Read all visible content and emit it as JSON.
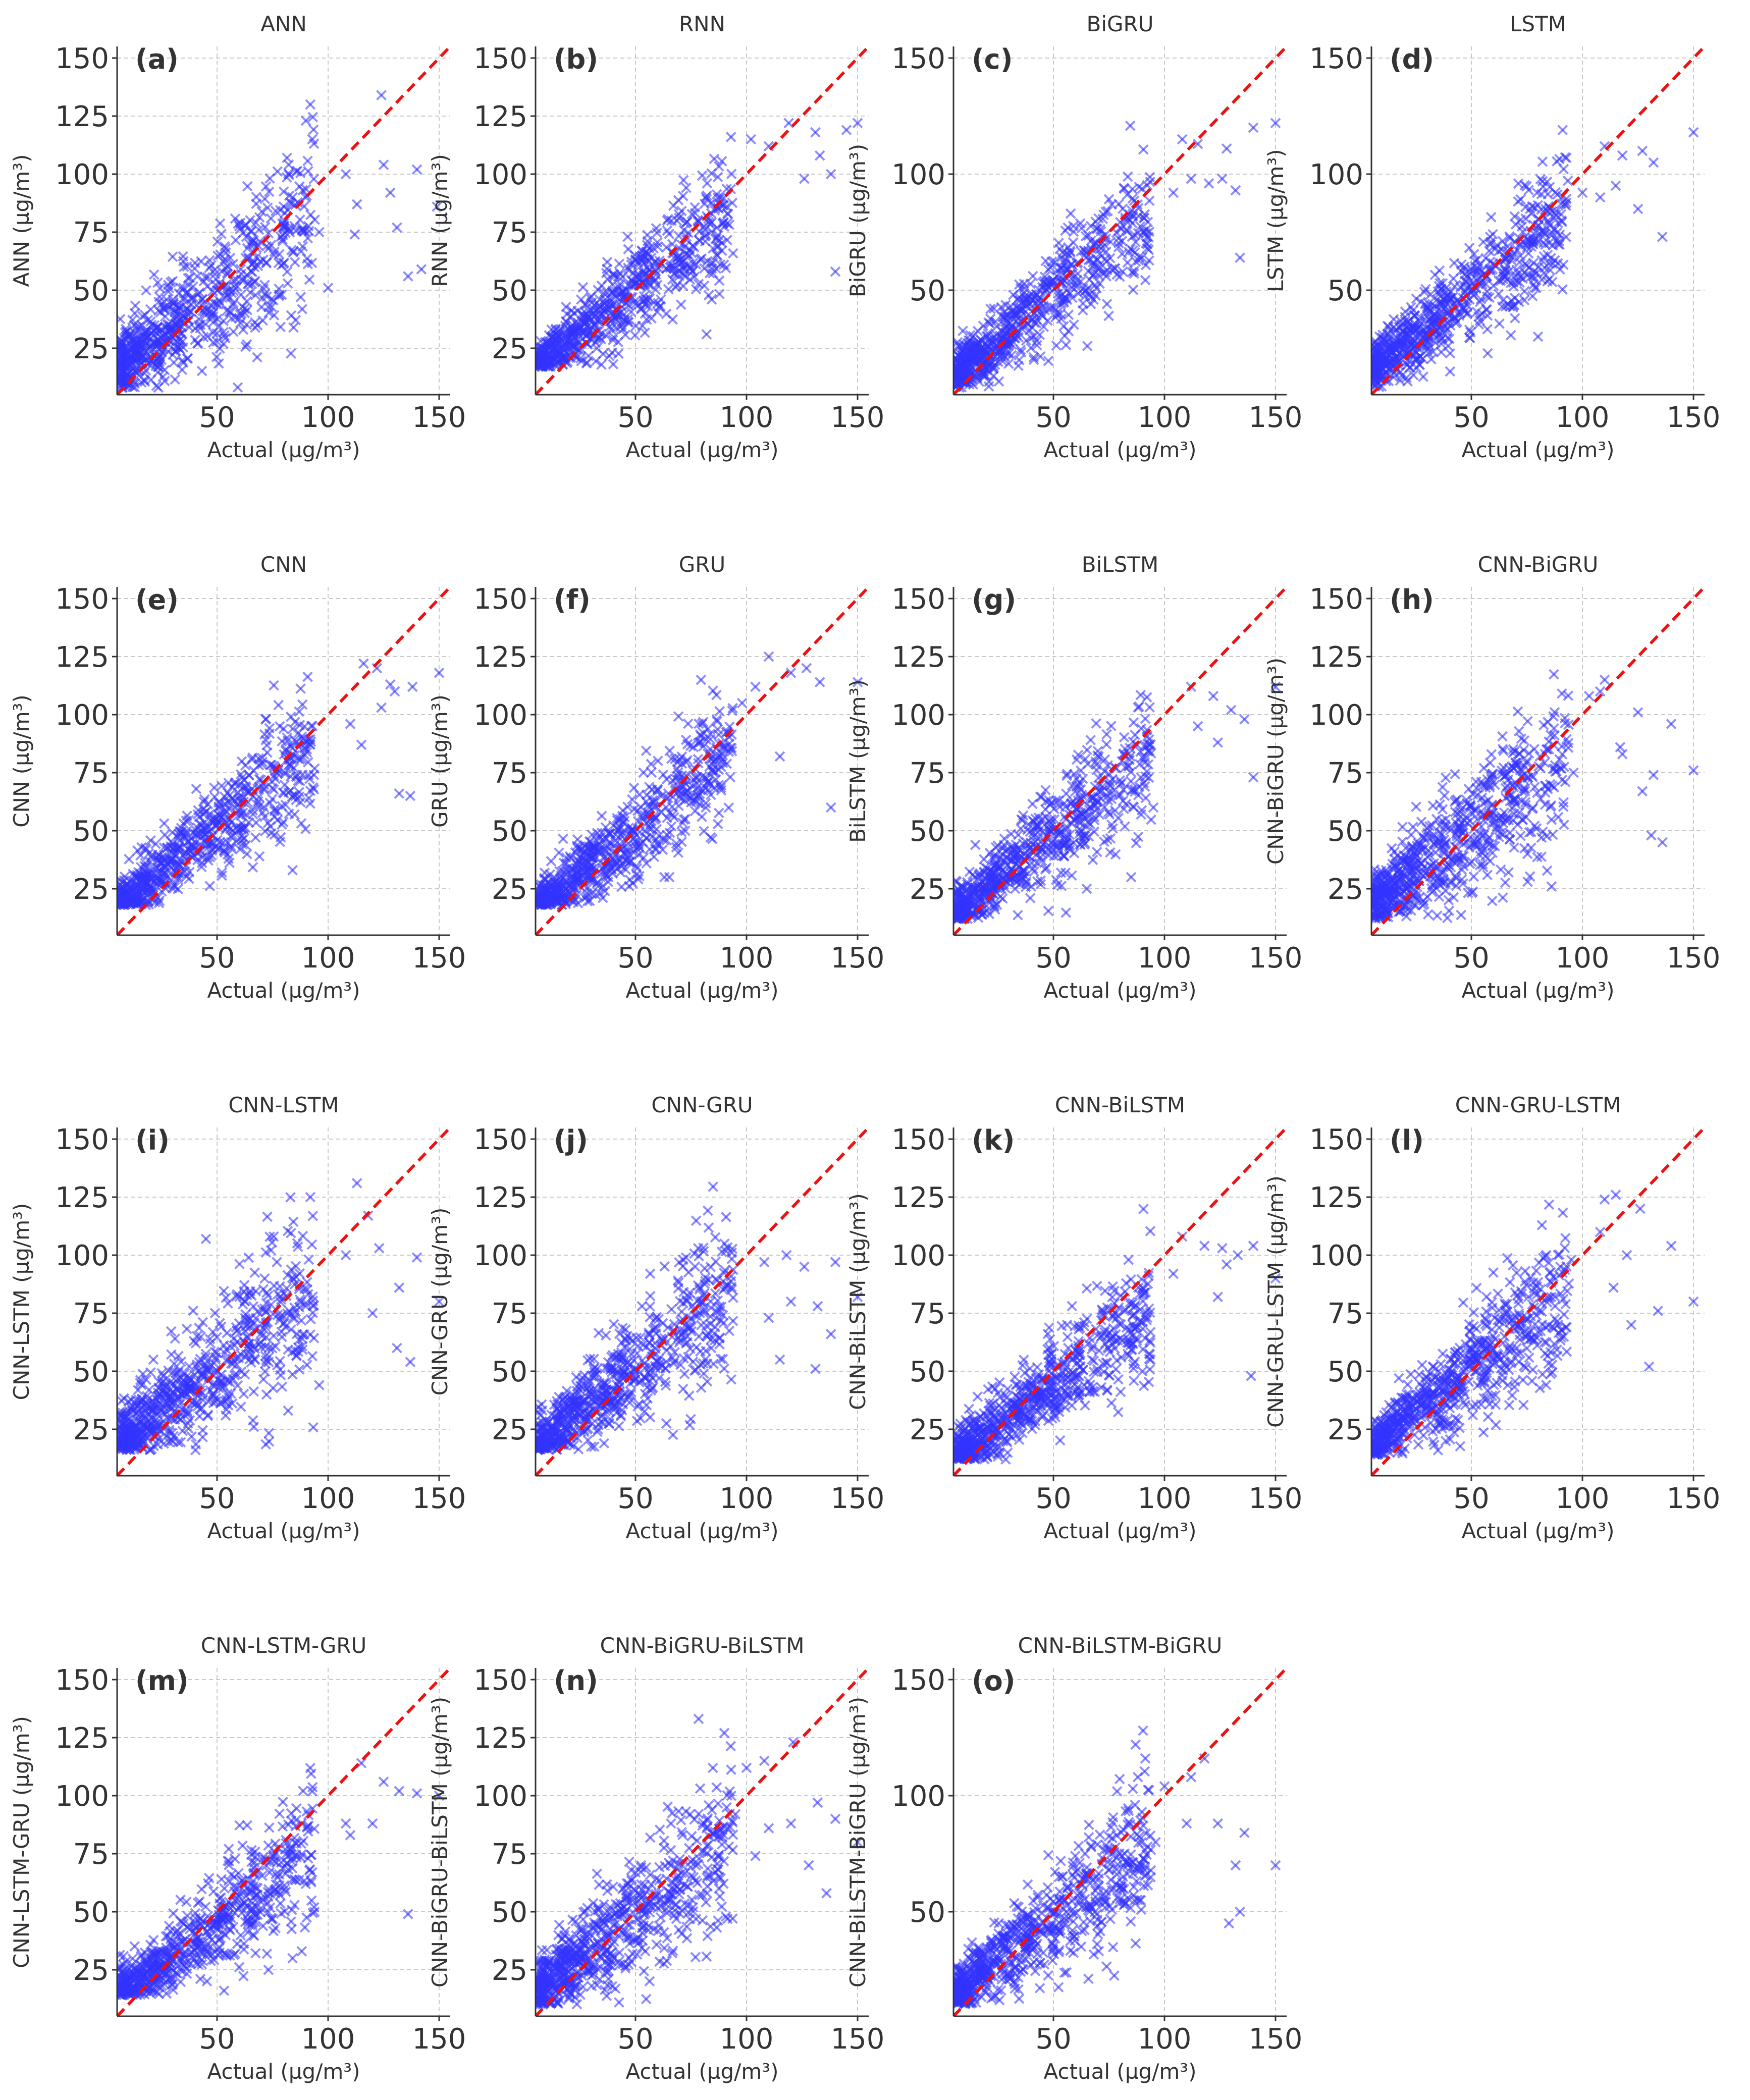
{
  "figure": {
    "marker_color": "#3333ff",
    "identity_line_color": "#ee1111",
    "xlabel": "Actual (µg/m³)",
    "xlim": [
      5,
      155
    ],
    "xticks": [
      50,
      100,
      150
    ]
  },
  "chart_data": [
    {
      "type": "scatter",
      "letter": "(a)",
      "title": "ANN",
      "ylabel": "ANN (µg/m³)",
      "ylim": [
        5,
        155
      ],
      "yticks": [
        25,
        50,
        75,
        100,
        125,
        150
      ],
      "spread": 11,
      "slope": 0.72,
      "intercept": 13,
      "ymin": 8,
      "outliers": [
        [
          92,
          130
        ],
        [
          124,
          134
        ],
        [
          125,
          104
        ],
        [
          90,
          123
        ],
        [
          140,
          102
        ],
        [
          149,
          86
        ],
        [
          113,
          87
        ],
        [
          112,
          74
        ],
        [
          131,
          77
        ],
        [
          128,
          92
        ],
        [
          142,
          59
        ],
        [
          136,
          56
        ],
        [
          100,
          51
        ],
        [
          96,
          75
        ],
        [
          108,
          100
        ]
      ]
    },
    {
      "type": "scatter",
      "letter": "(b)",
      "title": "RNN",
      "ylabel": "RNN (µg/m³)",
      "ylim": [
        5,
        155
      ],
      "yticks": [
        25,
        50,
        75,
        100,
        125,
        150
      ],
      "spread": 8,
      "slope": 0.78,
      "intercept": 12,
      "ymin": 17,
      "outliers": [
        [
          93,
          116
        ],
        [
          119,
          122
        ],
        [
          131,
          118
        ],
        [
          150,
          122
        ],
        [
          145,
          119
        ],
        [
          138,
          100
        ],
        [
          133,
          108
        ],
        [
          126,
          98
        ],
        [
          140,
          58
        ],
        [
          82,
          31
        ],
        [
          102,
          115
        ],
        [
          110,
          112
        ]
      ]
    },
    {
      "type": "scatter",
      "letter": "(c)",
      "title": "BiGRU",
      "ylabel": "BiGRU (µg/m³)",
      "ylim": [
        5,
        155
      ],
      "yticks": [
        50,
        100,
        150
      ],
      "spread": 8,
      "slope": 0.78,
      "intercept": 9,
      "ymin": 8,
      "outliers": [
        [
          108,
          115
        ],
        [
          115,
          113
        ],
        [
          128,
          111
        ],
        [
          150,
          122
        ],
        [
          140,
          120
        ],
        [
          126,
          98
        ],
        [
          134,
          64
        ],
        [
          132,
          93
        ],
        [
          104,
          92
        ],
        [
          112,
          98
        ],
        [
          120,
          96
        ]
      ]
    },
    {
      "type": "scatter",
      "letter": "(d)",
      "title": "LSTM",
      "ylabel": "LSTM (µg/m³)",
      "ylim": [
        5,
        155
      ],
      "yticks": [
        50,
        100,
        150
      ],
      "spread": 8,
      "slope": 0.74,
      "intercept": 12,
      "ymin": 8,
      "outliers": [
        [
          110,
          112
        ],
        [
          118,
          108
        ],
        [
          127,
          110
        ],
        [
          132,
          105
        ],
        [
          150,
          118
        ],
        [
          136,
          73
        ],
        [
          125,
          85
        ],
        [
          115,
          95
        ],
        [
          100,
          92
        ],
        [
          108,
          90
        ],
        [
          80,
          30
        ]
      ]
    },
    {
      "type": "scatter",
      "letter": "(e)",
      "title": "CNN",
      "ylabel": "CNN (µg/m³)",
      "ylim": [
        5,
        155
      ],
      "yticks": [
        25,
        50,
        75,
        100,
        125,
        150
      ],
      "spread": 8,
      "slope": 0.76,
      "intercept": 14,
      "ymin": 18,
      "outliers": [
        [
          116,
          122
        ],
        [
          122,
          120
        ],
        [
          128,
          113
        ],
        [
          130,
          110
        ],
        [
          138,
          112
        ],
        [
          150,
          118
        ],
        [
          132,
          66
        ],
        [
          137,
          65
        ],
        [
          124,
          103
        ],
        [
          110,
          96
        ],
        [
          115,
          87
        ],
        [
          84,
          33
        ]
      ]
    },
    {
      "type": "scatter",
      "letter": "(f)",
      "title": "GRU",
      "ylabel": "GRU (µg/m³)",
      "ylim": [
        5,
        155
      ],
      "yticks": [
        25,
        50,
        75,
        100,
        125,
        150
      ],
      "spread": 8,
      "slope": 0.8,
      "intercept": 11,
      "ymin": 18,
      "outliers": [
        [
          110,
          125
        ],
        [
          120,
          118
        ],
        [
          127,
          120
        ],
        [
          133,
          114
        ],
        [
          150,
          114
        ],
        [
          138,
          60
        ],
        [
          115,
          82
        ],
        [
          104,
          112
        ],
        [
          63,
          30
        ],
        [
          98,
          105
        ]
      ]
    },
    {
      "type": "scatter",
      "letter": "(g)",
      "title": "BiLSTM",
      "ylabel": "BiLSTM (µg/m³)",
      "ylim": [
        5,
        155
      ],
      "yticks": [
        25,
        50,
        75,
        100,
        125,
        150
      ],
      "spread": 8,
      "slope": 0.78,
      "intercept": 10,
      "ymin": 12,
      "outliers": [
        [
          112,
          112
        ],
        [
          122,
          108
        ],
        [
          130,
          102
        ],
        [
          136,
          98
        ],
        [
          150,
          112
        ],
        [
          140,
          73
        ],
        [
          124,
          88
        ],
        [
          95,
          60
        ],
        [
          85,
          30
        ],
        [
          65,
          25
        ],
        [
          115,
          95
        ]
      ]
    },
    {
      "type": "scatter",
      "letter": "(h)",
      "title": "CNN-BiGRU",
      "ylabel": "CNN-BiGRU (µg/m³)",
      "ylim": [
        5,
        155
      ],
      "yticks": [
        25,
        50,
        75,
        100,
        125,
        150
      ],
      "spread": 10,
      "slope": 0.72,
      "intercept": 15,
      "ymin": 12,
      "outliers": [
        [
          110,
          115
        ],
        [
          125,
          101
        ],
        [
          108,
          110
        ],
        [
          140,
          96
        ],
        [
          150,
          76
        ],
        [
          132,
          74
        ],
        [
          131,
          48
        ],
        [
          136,
          45
        ],
        [
          127,
          67
        ],
        [
          117,
          86
        ],
        [
          103,
          108
        ],
        [
          118,
          83
        ],
        [
          96,
          75
        ]
      ]
    },
    {
      "type": "scatter",
      "letter": "(i)",
      "title": "CNN-LSTM",
      "ylabel": "CNN-LSTM (µg/m³)",
      "ylim": [
        5,
        155
      ],
      "yticks": [
        25,
        50,
        75,
        100,
        125,
        150
      ],
      "spread": 10,
      "slope": 0.72,
      "intercept": 16,
      "ymin": 16,
      "outliers": [
        [
          92,
          125
        ],
        [
          113,
          131
        ],
        [
          118,
          117
        ],
        [
          108,
          100
        ],
        [
          123,
          103
        ],
        [
          140,
          99
        ],
        [
          132,
          86
        ],
        [
          150,
          80
        ],
        [
          137,
          54
        ],
        [
          131,
          60
        ],
        [
          120,
          75
        ],
        [
          45,
          107
        ],
        [
          82,
          33
        ],
        [
          96,
          44
        ]
      ]
    },
    {
      "type": "scatter",
      "letter": "(j)",
      "title": "CNN-GRU",
      "ylabel": "CNN-GRU (µg/m³)",
      "ylim": [
        5,
        155
      ],
      "yticks": [
        25,
        50,
        75,
        100,
        125,
        150
      ],
      "spread": 9,
      "slope": 0.74,
      "intercept": 14,
      "ymin": 16,
      "outliers": [
        [
          108,
          97
        ],
        [
          118,
          100
        ],
        [
          126,
          95
        ],
        [
          140,
          97
        ],
        [
          150,
          82
        ],
        [
          132,
          78
        ],
        [
          120,
          80
        ],
        [
          138,
          66
        ],
        [
          131,
          51
        ],
        [
          115,
          55
        ],
        [
          110,
          73
        ]
      ]
    },
    {
      "type": "scatter",
      "letter": "(k)",
      "title": "CNN-BiLSTM",
      "ylabel": "CNN-BiLSTM (µg/m³)",
      "ylim": [
        5,
        155
      ],
      "yticks": [
        25,
        50,
        75,
        100,
        125,
        150
      ],
      "spread": 8,
      "slope": 0.72,
      "intercept": 9,
      "ymin": 12,
      "outliers": [
        [
          108,
          108
        ],
        [
          118,
          104
        ],
        [
          126,
          103
        ],
        [
          140,
          104
        ],
        [
          150,
          90
        ],
        [
          133,
          100
        ],
        [
          124,
          82
        ],
        [
          139,
          48
        ],
        [
          128,
          96
        ],
        [
          104,
          92
        ],
        [
          92,
          72
        ]
      ]
    },
    {
      "type": "scatter",
      "letter": "(l)",
      "title": "CNN-GRU-LSTM",
      "ylabel": "CNN-GRU-LSTM (µg/m³)",
      "ylim": [
        5,
        155
      ],
      "yticks": [
        25,
        50,
        75,
        100,
        125,
        150
      ],
      "spread": 9,
      "slope": 0.75,
      "intercept": 14,
      "ymin": 14,
      "outliers": [
        [
          110,
          124
        ],
        [
          115,
          126
        ],
        [
          108,
          110
        ],
        [
          120,
          100
        ],
        [
          126,
          120
        ],
        [
          140,
          104
        ],
        [
          150,
          80
        ],
        [
          134,
          76
        ],
        [
          130,
          52
        ],
        [
          122,
          70
        ],
        [
          114,
          86
        ],
        [
          95,
          98
        ]
      ]
    },
    {
      "type": "scatter",
      "letter": "(m)",
      "title": "CNN-LSTM-GRU",
      "ylabel": "CNN-LSTM-GRU (µg/m³)",
      "ylim": [
        5,
        155
      ],
      "yticks": [
        25,
        50,
        75,
        100,
        125,
        150
      ],
      "spread": 8,
      "slope": 0.72,
      "intercept": 10,
      "ymin": 14,
      "outliers": [
        [
          115,
          114
        ],
        [
          125,
          106
        ],
        [
          132,
          102
        ],
        [
          140,
          101
        ],
        [
          150,
          100
        ],
        [
          136,
          49
        ],
        [
          120,
          88
        ],
        [
          110,
          83
        ],
        [
          108,
          88
        ],
        [
          84,
          30
        ]
      ]
    },
    {
      "type": "scatter",
      "letter": "(n)",
      "title": "CNN-BiGRU-BiLSTM",
      "ylabel": "CNN-BiGRU-BiLSTM (µg/m³)",
      "ylim": [
        5,
        155
      ],
      "yticks": [
        25,
        50,
        75,
        100,
        125,
        150
      ],
      "spread": 10,
      "slope": 0.72,
      "intercept": 12,
      "ymin": 10,
      "outliers": [
        [
          90,
          127
        ],
        [
          108,
          115
        ],
        [
          121,
          123
        ],
        [
          100,
          112
        ],
        [
          132,
          97
        ],
        [
          140,
          90
        ],
        [
          150,
          80
        ],
        [
          128,
          70
        ],
        [
          136,
          58
        ],
        [
          120,
          88
        ],
        [
          110,
          86
        ],
        [
          95,
          92
        ],
        [
          104,
          74
        ]
      ]
    },
    {
      "type": "scatter",
      "letter": "(o)",
      "title": "CNN-BiLSTM-BiGRU",
      "ylabel": "CNN-BiLSTM-BiGRU (µg/m³)",
      "ylim": [
        5,
        155
      ],
      "yticks": [
        50,
        100,
        150
      ],
      "spread": 9,
      "slope": 0.72,
      "intercept": 11,
      "ymin": 10,
      "outliers": [
        [
          87,
          122
        ],
        [
          88,
          108
        ],
        [
          100,
          104
        ],
        [
          112,
          108
        ],
        [
          118,
          116
        ],
        [
          124,
          88
        ],
        [
          132,
          70
        ],
        [
          136,
          84
        ],
        [
          150,
          70
        ],
        [
          129,
          45
        ],
        [
          134,
          50
        ],
        [
          110,
          88
        ],
        [
          96,
          80
        ]
      ]
    }
  ]
}
